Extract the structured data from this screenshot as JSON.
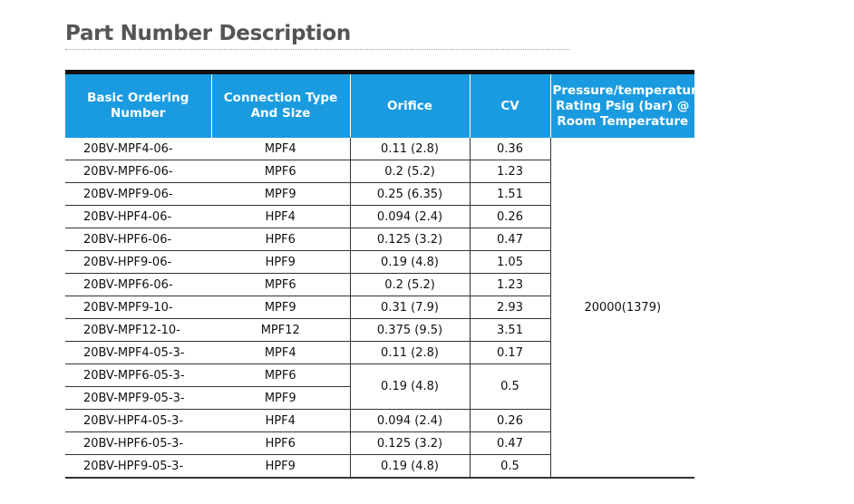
{
  "header": {
    "title": "Part Number Description"
  },
  "table": {
    "columns": [
      "Basic Ordering Number",
      "Connection Type And Size",
      "Orifice",
      "CV",
      "Pressure/temperature Rating Psig (bar) @ Room Temperature"
    ],
    "pressure": "20000(1379)",
    "rows": [
      [
        "20BV-MPF4-06-",
        "MPF4",
        "0.11 (2.8)",
        "0.36"
      ],
      [
        "20BV-MPF6-06-",
        "MPF6",
        "0.2 (5.2)",
        "1.23"
      ],
      [
        "20BV-MPF9-06-",
        "MPF9",
        "0.25 (6.35)",
        "1.51"
      ],
      [
        "20BV-HPF4-06-",
        "HPF4",
        "0.094 (2.4)",
        "0.26"
      ],
      [
        "20BV-HPF6-06-",
        "HPF6",
        "0.125 (3.2)",
        "0.47"
      ],
      [
        "20BV-HPF9-06-",
        "HPF9",
        "0.19 (4.8)",
        "1.05"
      ],
      [
        "20BV-MPF6-06-",
        "MPF6",
        "0.2 (5.2)",
        "1.23"
      ],
      [
        "20BV-MPF9-10-",
        "MPF9",
        "0.31 (7.9)",
        "2.93"
      ],
      [
        "20BV-MPF12-10-",
        "MPF12",
        "0.375 (9.5)",
        "3.51"
      ],
      [
        "20BV-MPF4-05-3-",
        "MPF4",
        "0.11 (2.8)",
        "0.17"
      ],
      [
        "20BV-MPF6-05-3-",
        "MPF6",
        "0.19 (4.8)",
        "0.5"
      ],
      [
        "20BV-MPF9-05-3-",
        "MPF9"
      ],
      [
        "20BV-HPF4-05-3-",
        "HPF4",
        "0.094 (2.4)",
        "0.26"
      ],
      [
        "20BV-HPF6-05-3-",
        "HPF6",
        "0.125 (3.2)",
        "0.47"
      ],
      [
        "20BV-HPF9-05-3-",
        "HPF9",
        "0.19 (4.8)",
        "0.5"
      ]
    ]
  }
}
